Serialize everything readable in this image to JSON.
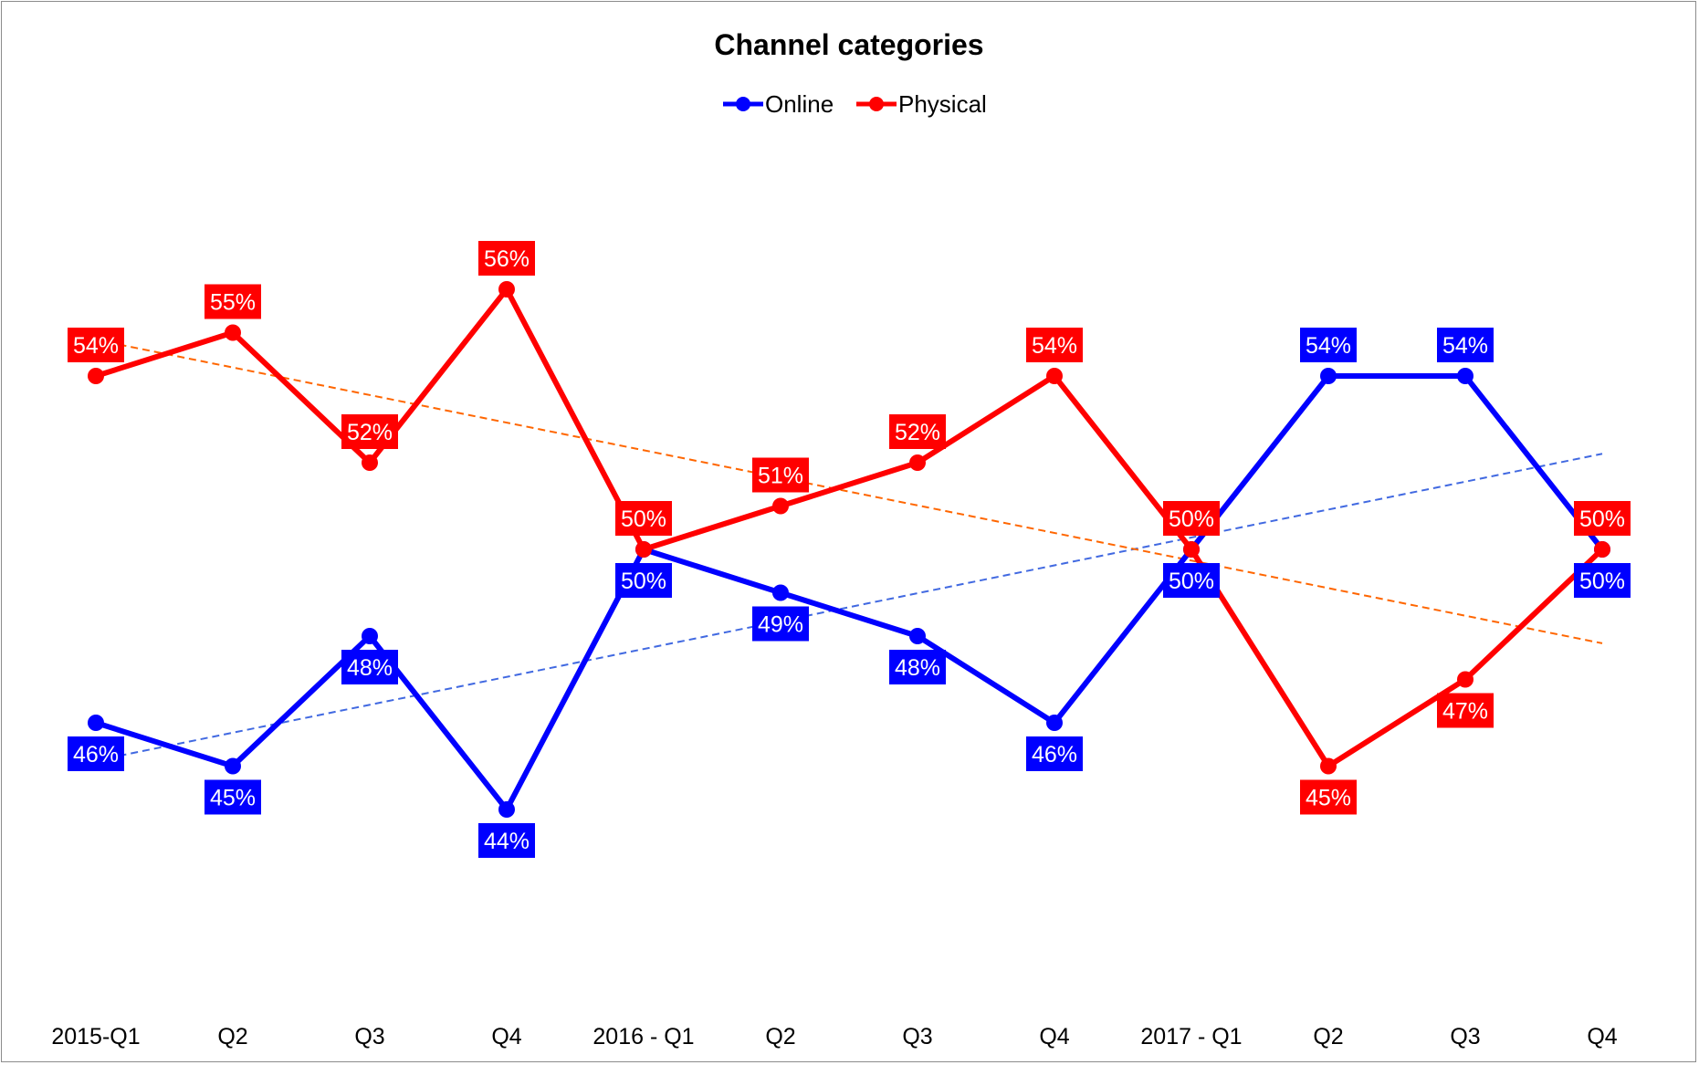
{
  "chart_data": {
    "type": "line",
    "title": "Channel categories",
    "xlabel": "",
    "ylabel": "",
    "categories": [
      "2015-Q1",
      "Q2",
      "Q3",
      "Q4",
      "2016 - Q1",
      "Q2",
      "Q3",
      "Q4",
      "2017 - Q1",
      "Q2",
      "Q3",
      "Q4"
    ],
    "ylim": [
      40,
      60
    ],
    "grid": false,
    "y_axis_visible": false,
    "legend_position": "top",
    "series": [
      {
        "name": "Online",
        "color": "#0000ff",
        "values": [
          46,
          45,
          48,
          44,
          50,
          49,
          48,
          46,
          50,
          54,
          54,
          50
        ],
        "labels": [
          "46%",
          "45%",
          "48%",
          "44%",
          "50%",
          "49%",
          "48%",
          "46%",
          "50%",
          "54%",
          "54%",
          "50%"
        ],
        "trendline": {
          "style": "dashed linear",
          "color": "#4169e1"
        }
      },
      {
        "name": "Physical",
        "color": "#ff0000",
        "values": [
          54,
          55,
          52,
          56,
          50,
          51,
          52,
          54,
          50,
          45,
          47,
          50
        ],
        "labels": [
          "54%",
          "55%",
          "52%",
          "56%",
          "50%",
          "51%",
          "52%",
          "54%",
          "50%",
          "45%",
          "47%",
          "50%"
        ],
        "trendline": {
          "style": "dashed linear",
          "color": "#ff6600"
        }
      }
    ]
  }
}
